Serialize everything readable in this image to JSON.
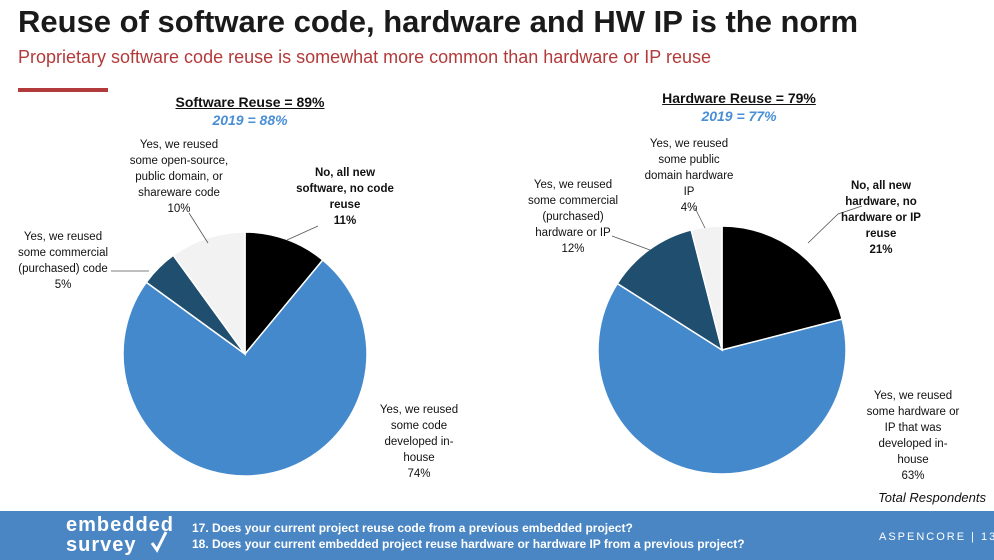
{
  "title": "Reuse of software code, hardware and HW IP is the norm",
  "subtitle": "Proprietary software code reuse is somewhat more common than hardware or IP reuse",
  "colors": {
    "black": "#000000",
    "blue_large": "#4389cc",
    "navy": "#1f4e6e",
    "light_gray": "#f2f2f2",
    "accent_red": "#b33a3a",
    "footer_blue": "#4a86c3"
  },
  "chart_data": [
    {
      "type": "pie",
      "title": "Software Reuse = 89%",
      "subtitle": "2019 = 88%",
      "slices": [
        {
          "lines": [
            "No, all new",
            "software, no code",
            "reuse",
            "11%"
          ],
          "value": 11,
          "color": "#000000"
        },
        {
          "lines": [
            "Yes, we reused",
            "some code",
            "developed in-",
            "house",
            "74%"
          ],
          "value": 74,
          "color": "#4389cc"
        },
        {
          "lines": [
            "Yes, we reused",
            "some commercial",
            "(purchased) code",
            "5%"
          ],
          "value": 5,
          "color": "#1f4e6e"
        },
        {
          "lines": [
            "Yes, we reused",
            "some open-source,",
            "public domain, or",
            "shareware code",
            "10%"
          ],
          "value": 10,
          "color": "#f2f2f2"
        }
      ]
    },
    {
      "type": "pie",
      "title": "Hardware Reuse = 79%",
      "subtitle": "2019 = 77%",
      "slices": [
        {
          "lines": [
            "No, all new",
            "hardware, no",
            "hardware or IP",
            "reuse",
            "21%"
          ],
          "value": 21,
          "color": "#000000"
        },
        {
          "lines": [
            "Yes, we reused",
            "some hardware or",
            "IP that was",
            "developed in-",
            "house",
            "63%"
          ],
          "value": 63,
          "color": "#4389cc"
        },
        {
          "lines": [
            "Yes, we reused",
            "some commercial",
            "(purchased)",
            "hardware or IP",
            "12%"
          ],
          "value": 12,
          "color": "#1f4e6e"
        },
        {
          "lines": [
            "Yes, we reused",
            "some public",
            "domain hardware",
            "IP",
            "4%"
          ],
          "value": 4,
          "color": "#f2f2f2"
        }
      ]
    }
  ],
  "footnote": "Total Respondents",
  "footer": {
    "logo_top": "embedded",
    "logo_bottom": "survey",
    "q17": "17. Does your current project reuse code from a previous embedded project?",
    "q18": "18. Does your current embedded project reuse hardware or hardware IP from a previous project?",
    "brand": "ASPENCORE",
    "page": "13",
    "brand_line": "ASPENCORE | 13"
  }
}
